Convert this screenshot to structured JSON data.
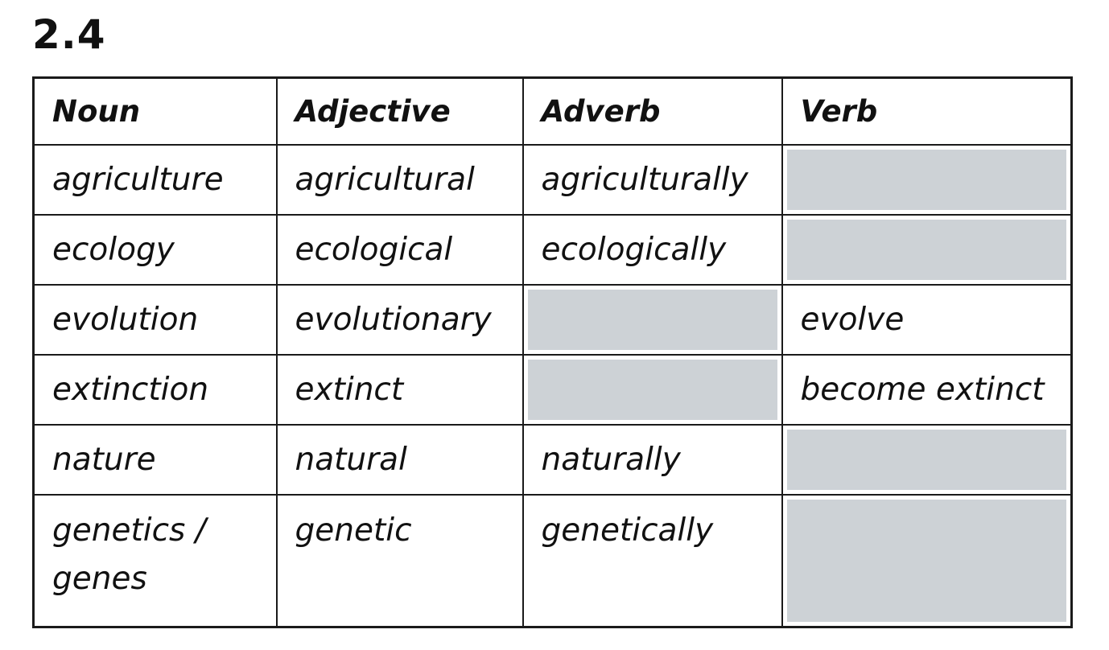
{
  "section": {
    "number": "2.4"
  },
  "table": {
    "headers": [
      "Noun",
      "Adjective",
      "Adverb",
      "Verb"
    ],
    "rows": [
      [
        "agriculture",
        "agricultural",
        "agriculturally",
        ""
      ],
      [
        "ecology",
        "ecological",
        "ecologically",
        ""
      ],
      [
        "evolution",
        "evolutionary",
        "",
        "evolve"
      ],
      [
        "extinction",
        "extinct",
        "",
        "become extinct"
      ],
      [
        "nature",
        "natural",
        "naturally",
        ""
      ],
      [
        "genetics / genes",
        "genetic",
        "genetically",
        ""
      ]
    ],
    "blank_cell_color": "#cdd2d6"
  }
}
